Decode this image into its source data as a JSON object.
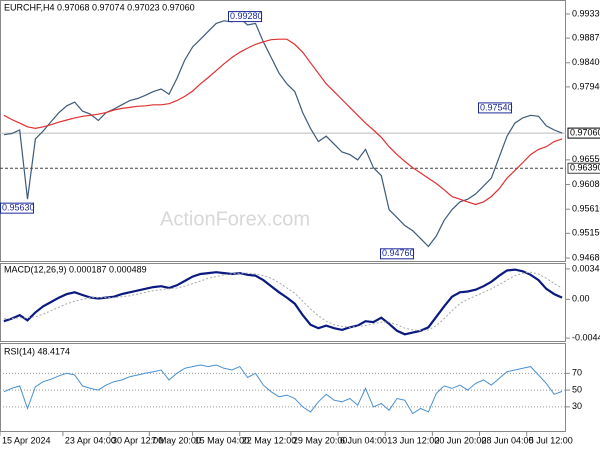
{
  "chart_data": [
    {
      "type": "line",
      "title": "EURCHF,H4 0.97068 0.97074 0.97023 0.97060",
      "watermark": "ActionForex.com",
      "xlim": [
        0,
        72
      ],
      "ylim": [
        0.94604,
        0.99577
      ],
      "yticks": [
        {
          "value": 0.9933,
          "label": "0.99330"
        },
        {
          "value": 0.9887,
          "label": "0.98870"
        },
        {
          "value": 0.984,
          "label": "0.98400"
        },
        {
          "value": 0.9794,
          "label": "0.97940"
        },
        {
          "value": 0.9655,
          "label": "0.96550"
        },
        {
          "value": 0.9608,
          "label": "0.96080"
        },
        {
          "value": 0.9561,
          "label": "0.95610"
        },
        {
          "value": 0.9515,
          "label": "0.95150"
        },
        {
          "value": 0.9468,
          "label": "0.94680"
        }
      ],
      "annotations": [
        {
          "value": 0.9928,
          "label": "0.99280"
        },
        {
          "value": 0.9754,
          "label": "0.97540"
        },
        {
          "value": 0.9563,
          "label": "0.95630"
        },
        {
          "value": 0.9476,
          "label": "0.94760"
        }
      ],
      "current_price": {
        "value": 0.9706,
        "label": "0.97060"
      },
      "level": {
        "value": 0.9639,
        "label": "0.96390"
      },
      "series": [
        {
          "color": "#3d5a78",
          "values": [
            0.9703,
            0.9705,
            0.9712,
            0.958,
            0.9695,
            0.971,
            0.9728,
            0.9745,
            0.9758,
            0.9765,
            0.9748,
            0.9742,
            0.973,
            0.9745,
            0.9752,
            0.976,
            0.9768,
            0.9772,
            0.9778,
            0.9785,
            0.979,
            0.978,
            0.981,
            0.9845,
            0.987,
            0.9885,
            0.99,
            0.9915,
            0.992,
            0.9918,
            0.9925,
            0.9912,
            0.9915,
            0.988,
            0.985,
            0.982,
            0.98,
            0.9785,
            0.9745,
            0.9715,
            0.969,
            0.97,
            0.9685,
            0.967,
            0.9665,
            0.9655,
            0.9675,
            0.964,
            0.9625,
            0.956,
            0.9545,
            0.953,
            0.952,
            0.9505,
            0.949,
            0.951,
            0.954,
            0.956,
            0.9575,
            0.958,
            0.959,
            0.9605,
            0.962,
            0.966,
            0.97,
            0.9725,
            0.9735,
            0.974,
            0.9738,
            0.972,
            0.9712,
            0.9706
          ]
        },
        {
          "color": "#e03030",
          "values": [
            0.974,
            0.9732,
            0.9725,
            0.9718,
            0.9715,
            0.9718,
            0.9722,
            0.9727,
            0.9731,
            0.9735,
            0.9738,
            0.974,
            0.9742,
            0.9745,
            0.975,
            0.9753,
            0.9755,
            0.9757,
            0.9758,
            0.976,
            0.976,
            0.9762,
            0.9768,
            0.9776,
            0.9786,
            0.98,
            0.9812,
            0.9825,
            0.9838,
            0.985,
            0.986,
            0.9868,
            0.9875,
            0.988,
            0.9884,
            0.9885,
            0.9885,
            0.9875,
            0.986,
            0.984,
            0.982,
            0.98,
            0.9785,
            0.977,
            0.9755,
            0.974,
            0.9725,
            0.9712,
            0.9698,
            0.968,
            0.9665,
            0.9652,
            0.964,
            0.963,
            0.962,
            0.961,
            0.9598,
            0.9585,
            0.958,
            0.9575,
            0.957,
            0.9575,
            0.9585,
            0.96,
            0.962,
            0.9635,
            0.965,
            0.9665,
            0.9675,
            0.968,
            0.969,
            0.9695
          ]
        }
      ]
    },
    {
      "type": "line",
      "title": "MACD(12,26,9) 0.000187 0.000489",
      "xlim": [
        0,
        72
      ],
      "ylim": [
        -0.00488,
        0.00404
      ],
      "yticks": [
        0.003481,
        {
          "value": 0,
          "label": "0.00"
        },
        -0.004436
      ],
      "series": [
        {
          "color": "#0a1a80",
          "width": 2.2,
          "values": [
            -0.0025,
            -0.0022,
            -0.0018,
            -0.0024,
            -0.0015,
            -0.0008,
            -0.0003,
            0.0002,
            0.0006,
            0.0008,
            0.0005,
            0.0002,
            0.0001,
            0.0002,
            0.0003,
            0.0006,
            0.0008,
            0.001,
            0.0012,
            0.0014,
            0.0015,
            0.0013,
            0.0016,
            0.0021,
            0.0026,
            0.0029,
            0.003,
            0.0031,
            0.003,
            0.0029,
            0.003,
            0.0028,
            0.0027,
            0.0022,
            0.0015,
            0.0008,
            0.0002,
            -0.0005,
            -0.0018,
            -0.0029,
            -0.0033,
            -0.003,
            -0.0033,
            -0.0035,
            -0.0032,
            -0.003,
            -0.0025,
            -0.0026,
            -0.0021,
            -0.0028,
            -0.0036,
            -0.004,
            -0.0038,
            -0.0036,
            -0.0032,
            -0.002,
            -0.0008,
            0.0003,
            0.0008,
            0.0009,
            0.0011,
            0.0015,
            0.002,
            0.0027,
            0.0033,
            0.0034,
            0.0032,
            0.0028,
            0.0022,
            0.0012,
            0.0006,
            0.0002
          ]
        },
        {
          "color": "#a8a8a8",
          "width": 1,
          "dash": "2,2",
          "values": [
            -0.0022,
            -0.0022,
            -0.0021,
            -0.0021,
            -0.002,
            -0.0017,
            -0.0013,
            -0.0009,
            -0.0005,
            -0.0002,
            0,
            0.0002,
            0.0002,
            0.0002,
            0.0002,
            0.0003,
            0.0004,
            0.0006,
            0.0008,
            0.001,
            0.0011,
            0.0012,
            0.0013,
            0.0015,
            0.0018,
            0.0021,
            0.0024,
            0.0026,
            0.0028,
            0.0029,
            0.003,
            0.003,
            0.0029,
            0.0027,
            0.0024,
            0.0019,
            0.0013,
            0.0007,
            -0.0002,
            -0.0011,
            -0.0019,
            -0.0025,
            -0.0029,
            -0.0031,
            -0.0032,
            -0.0031,
            -0.003,
            -0.0028,
            -0.0026,
            -0.0026,
            -0.0029,
            -0.0033,
            -0.0035,
            -0.0036,
            -0.0035,
            -0.003,
            -0.0022,
            -0.0013,
            -0.0005,
            0,
            0.0004,
            0.0008,
            0.0012,
            0.0017,
            0.0022,
            0.0027,
            0.003,
            0.0031,
            0.0029,
            0.0024,
            0.0018,
            0.0013
          ]
        }
      ]
    },
    {
      "type": "line",
      "title": "RSI(14) 48.4174",
      "xlim": [
        0,
        72
      ],
      "ylim": [
        0,
        105
      ],
      "yticks": [
        70,
        50,
        30
      ],
      "grid": true,
      "xticks": [
        {
          "value": 0,
          "label": "15 Apr 2024"
        },
        {
          "value": 8,
          "label": "23 Apr 04:00"
        },
        {
          "value": 14,
          "label": "30 Apr 12:00"
        },
        {
          "value": 19,
          "label": "7 May 20:00"
        },
        {
          "value": 24.5,
          "label": "15 May 04:00"
        },
        {
          "value": 30.5,
          "label": "22 May 12:00"
        },
        {
          "value": 37,
          "label": "29 May 20:00"
        },
        {
          "value": 43,
          "label": "6 Jun 04:00"
        },
        {
          "value": 49,
          "label": "13 Jun 12:00"
        },
        {
          "value": 55,
          "label": "20 Jun 20:00"
        },
        {
          "value": 61,
          "label": "28 Jun 04:00"
        },
        {
          "value": 67,
          "label": "5 Jul 12:00"
        }
      ],
      "series": [
        {
          "color": "#4a90d0",
          "width": 1,
          "values": [
            48,
            52,
            55,
            28,
            54,
            60,
            63,
            67,
            70,
            68,
            55,
            52,
            50,
            56,
            60,
            62,
            66,
            68,
            70,
            72,
            74,
            62,
            70,
            76,
            78,
            80,
            78,
            80,
            76,
            74,
            78,
            65,
            70,
            56,
            48,
            42,
            44,
            40,
            30,
            24,
            36,
            45,
            38,
            36,
            40,
            32,
            52,
            30,
            34,
            26,
            40,
            38,
            22,
            28,
            24,
            46,
            55,
            52,
            56,
            50,
            58,
            62,
            56,
            64,
            72,
            74,
            76,
            78,
            68,
            58,
            45,
            48.4174
          ]
        }
      ]
    }
  ]
}
